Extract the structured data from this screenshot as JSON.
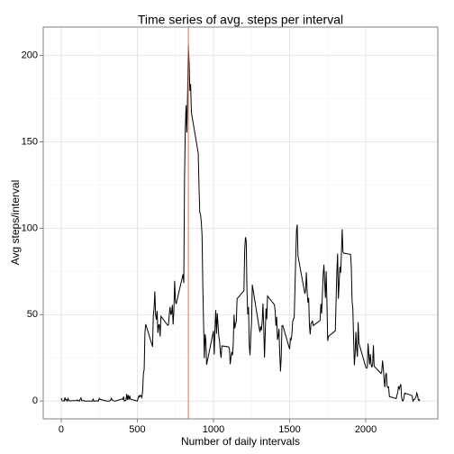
{
  "chart_data": {
    "type": "line",
    "title": "Time series of avg. steps per interval",
    "x_label": "Number of daily intervals",
    "y_label": "Avg steps/interval",
    "x": [
      0,
      5,
      10,
      15,
      20,
      25,
      30,
      35,
      40,
      45,
      50,
      55,
      100,
      105,
      110,
      115,
      120,
      125,
      130,
      135,
      140,
      145,
      150,
      155,
      200,
      205,
      210,
      215,
      220,
      225,
      230,
      235,
      240,
      245,
      250,
      255,
      300,
      305,
      310,
      315,
      320,
      325,
      330,
      335,
      340,
      345,
      350,
      355,
      400,
      405,
      410,
      415,
      420,
      425,
      430,
      435,
      440,
      445,
      450,
      455,
      500,
      505,
      510,
      515,
      520,
      525,
      530,
      535,
      540,
      545,
      550,
      555,
      600,
      605,
      610,
      615,
      620,
      625,
      630,
      635,
      640,
      645,
      650,
      655,
      700,
      705,
      710,
      715,
      720,
      725,
      730,
      735,
      740,
      745,
      750,
      755,
      800,
      805,
      810,
      815,
      820,
      825,
      830,
      835,
      840,
      845,
      850,
      855,
      900,
      905,
      910,
      915,
      920,
      925,
      930,
      935,
      940,
      945,
      950,
      955,
      1000,
      1005,
      1010,
      1015,
      1020,
      1025,
      1030,
      1035,
      1040,
      1045,
      1050,
      1055,
      1100,
      1105,
      1110,
      1115,
      1120,
      1125,
      1130,
      1135,
      1140,
      1145,
      1150,
      1155,
      1200,
      1205,
      1210,
      1215,
      1220,
      1225,
      1230,
      1235,
      1240,
      1245,
      1250,
      1255,
      1300,
      1305,
      1310,
      1315,
      1320,
      1325,
      1330,
      1335,
      1340,
      1345,
      1350,
      1355,
      1400,
      1405,
      1410,
      1415,
      1420,
      1425,
      1430,
      1435,
      1440,
      1445,
      1450,
      1455,
      1500,
      1505,
      1510,
      1515,
      1520,
      1525,
      1530,
      1535,
      1540,
      1545,
      1550,
      1555,
      1600,
      1605,
      1610,
      1615,
      1620,
      1625,
      1630,
      1635,
      1640,
      1645,
      1650,
      1655,
      1700,
      1705,
      1710,
      1715,
      1720,
      1725,
      1730,
      1735,
      1740,
      1745,
      1750,
      1755,
      1800,
      1805,
      1810,
      1815,
      1820,
      1825,
      1830,
      1835,
      1840,
      1845,
      1850,
      1855,
      1900,
      1905,
      1910,
      1915,
      1920,
      1925,
      1930,
      1935,
      1940,
      1945,
      1950,
      1955,
      2000,
      2005,
      2010,
      2015,
      2020,
      2025,
      2030,
      2035,
      2040,
      2045,
      2050,
      2055,
      2100,
      2105,
      2110,
      2115,
      2120,
      2125,
      2130,
      2135,
      2140,
      2145,
      2150,
      2155,
      2200,
      2205,
      2210,
      2215,
      2220,
      2225,
      2230,
      2235,
      2240,
      2245,
      2250,
      2255,
      2300,
      2305,
      2310,
      2315,
      2320,
      2325,
      2330,
      2335,
      2340,
      2345,
      2350,
      2355
    ],
    "series": [
      {
        "color": "#000000",
        "values": [
          1.72,
          0.34,
          0.13,
          0.15,
          0.08,
          2.09,
          0.53,
          0.87,
          0,
          1.47,
          0.3,
          0.13,
          0.32,
          0.68,
          0.15,
          0.34,
          0,
          1.11,
          1.83,
          0.17,
          0.17,
          0.38,
          0.26,
          0,
          0,
          0,
          1.13,
          0,
          0,
          0.13,
          0,
          0.23,
          0,
          0,
          1.55,
          0.94,
          0,
          0,
          0,
          0,
          0.21,
          0.62,
          1.62,
          0.58,
          0.49,
          0.08,
          0,
          0,
          1.19,
          0.94,
          2.57,
          0,
          0.34,
          0.36,
          4.11,
          0.66,
          3.49,
          0.83,
          3.11,
          1.11,
          0,
          1.57,
          3,
          2.25,
          3.32,
          2.96,
          2.09,
          6.06,
          16.02,
          18.34,
          39.45,
          44.49,
          31.49,
          49.26,
          53.77,
          63.45,
          49.96,
          47.08,
          52.15,
          39.34,
          44.02,
          44.17,
          37.36,
          49.04,
          43.81,
          44.38,
          50.51,
          54.51,
          49.92,
          50.98,
          55.68,
          44.32,
          52.26,
          69.55,
          57.85,
          56.15,
          73.38,
          68.21,
          129.43,
          157.53,
          171.15,
          155.4,
          177.3,
          206.17,
          195.92,
          179.57,
          183.4,
          167.02,
          143.45,
          124.04,
          109.11,
          108.11,
          103.72,
          95.96,
          66.21,
          45.23,
          24.79,
          38.75,
          34.98,
          21.06,
          40.57,
          26.98,
          42.42,
          52.66,
          38.92,
          50.79,
          44.28,
          37.42,
          34.7,
          28.34,
          25.09,
          31.94,
          31.36,
          29.68,
          21.32,
          25.55,
          28.38,
          26.47,
          33.43,
          49.98,
          42.04,
          44.6,
          46.04,
          59.19,
          63.87,
          87.7,
          94.85,
          92.77,
          63.4,
          50.17,
          54.47,
          32.42,
          26.53,
          37.74,
          45.06,
          67.28,
          42.34,
          39.89,
          43.26,
          40.98,
          46.25,
          56.43,
          42.75,
          25.13,
          39.96,
          53.55,
          47.32,
          60.81,
          55.75,
          51.96,
          43.58,
          48.7,
          35.47,
          37.55,
          41.85,
          27.51,
          17.11,
          26.08,
          43.62,
          43.77,
          30.02,
          36.08,
          35.49,
          38.85,
          45.96,
          47.75,
          48.13,
          65.32,
          82.91,
          98.66,
          102.11,
          83.96,
          62.13,
          64.13,
          74.55,
          63.17,
          56.91,
          59.77,
          43.87,
          38.57,
          44.66,
          45.45,
          46.21,
          43.68,
          46.62,
          56.3,
          50.72,
          61.23,
          72.72,
          78.94,
          68.94,
          59.66,
          75.09,
          56.51,
          34.77,
          37.45,
          40.68,
          58.02,
          74.7,
          85.32,
          59.26,
          67.77,
          77.7,
          74.25,
          85.34,
          99.45,
          86.58,
          85.6,
          84.87,
          77.83,
          58.04,
          53.36,
          36.32,
          20.72,
          27.4,
          40.02,
          30.21,
          25.55,
          45.66,
          33.53,
          19.62,
          19.02,
          19.34,
          33.34,
          26.81,
          21.17,
          27.3,
          21.34,
          19.55,
          21.32,
          32.3,
          20.15,
          15.94,
          17.23,
          23.45,
          19.25,
          12.45,
          8.02,
          14.66,
          16.3,
          8.68,
          7.79,
          8.13,
          2.62,
          1.45,
          3.68,
          4.81,
          8.51,
          7.08,
          8.7,
          9.75,
          2.21,
          0.32,
          0.11,
          1.6,
          4.6,
          3.3,
          2.85,
          0,
          0.83,
          0.96,
          1.58,
          2.6,
          4.7,
          3.3,
          0.64,
          0.23,
          1.08
        ]
      }
    ],
    "reference_line": {
      "x": 835,
      "color": "#e07070"
    },
    "xlim": [
      -117.75,
      2472.75
    ],
    "xticks": [
      0,
      500,
      1000,
      1500,
      2000
    ],
    "ylim": [
      -10.31,
      216.48
    ],
    "yticks": [
      0,
      50,
      100,
      150,
      200
    ],
    "grid": true
  }
}
